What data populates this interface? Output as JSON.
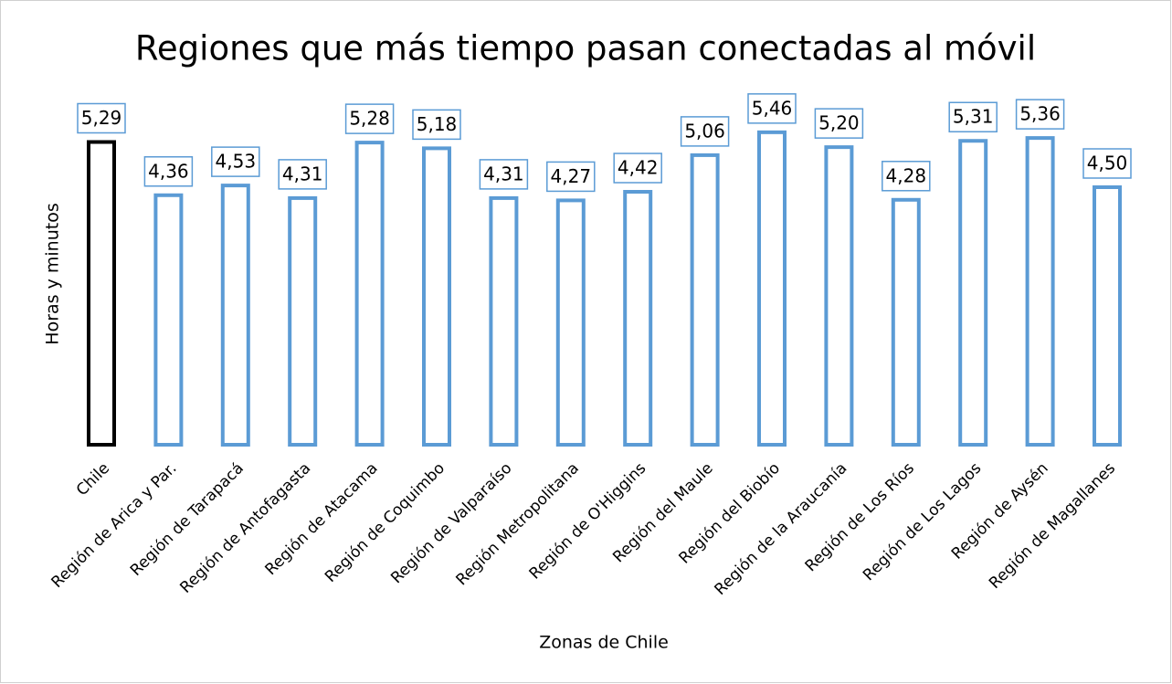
{
  "chart_data": {
    "type": "bar",
    "title": "Regiones que más tiempo pasan conectadas al móvil",
    "y_label": "Horas y minutos",
    "x_label": "Zonas de Chile",
    "categories": [
      "Chile",
      "Región de Arica y Par.",
      "Región de Tarapacá",
      "Región de Antofagasta",
      "Región de Atacama",
      "Región de Coquimbo",
      "Región de Valparaíso",
      "Región Metropolitana",
      "Región de O'Higgins",
      "Región del Maule",
      "Región del Biobío",
      "Región de la Araucanía",
      "Región de Los Ríos",
      "Región de Los Lagos",
      "Región de Aysén",
      "Región de Magallanes"
    ],
    "values": [
      5.29,
      4.36,
      4.53,
      4.31,
      5.28,
      5.18,
      4.31,
      4.27,
      4.42,
      5.06,
      5.46,
      5.2,
      4.28,
      5.31,
      5.36,
      4.5
    ],
    "value_labels": [
      "5,29",
      "4,36",
      "4,53",
      "4,31",
      "5,28",
      "5,18",
      "4,31",
      "4,27",
      "4,42",
      "5,06",
      "5,46",
      "5,20",
      "4,28",
      "5,31",
      "5,36",
      "4,50"
    ],
    "colors": [
      "#000000",
      "#5b9bd5",
      "#5b9bd5",
      "#5b9bd5",
      "#5b9bd5",
      "#5b9bd5",
      "#5b9bd5",
      "#5b9bd5",
      "#5b9bd5",
      "#5b9bd5",
      "#5b9bd5",
      "#5b9bd5",
      "#5b9bd5",
      "#5b9bd5",
      "#5b9bd5",
      "#5b9bd5"
    ],
    "label_box_color": "#5b9bd5",
    "ylim": [
      0,
      6
    ]
  }
}
